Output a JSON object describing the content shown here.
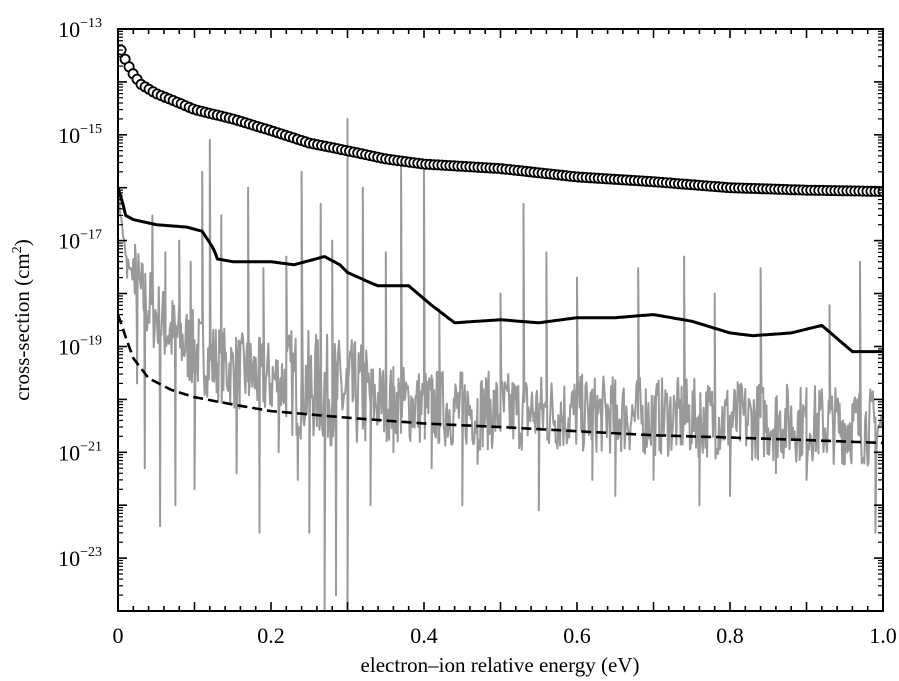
{
  "chart_data": {
    "type": "line",
    "title": "",
    "xlabel": "electron–ion relative energy (eV)",
    "ylabel_main": "cross-section (cm",
    "ylabel_sup": "2",
    "ylabel_tail": ")",
    "xlim": [
      0,
      1.0
    ],
    "ylim_log10": [
      -24.0,
      -13.0
    ],
    "yscale": "log",
    "grid": false,
    "legend": "none",
    "x_ticks": [
      {
        "value": 0,
        "label": "0"
      },
      {
        "value": 0.2,
        "label": "0.2"
      },
      {
        "value": 0.4,
        "label": "0.4"
      },
      {
        "value": 0.6,
        "label": "0.6"
      },
      {
        "value": 0.8,
        "label": "0.8"
      },
      {
        "value": 1.0,
        "label": "1.0"
      }
    ],
    "y_ticks": [
      {
        "exp": -13,
        "base": "10",
        "sup": "−13"
      },
      {
        "exp": -15,
        "base": "10",
        "sup": "−15"
      },
      {
        "exp": -17,
        "base": "10",
        "sup": "−17"
      },
      {
        "exp": -19,
        "base": "10",
        "sup": "−19"
      },
      {
        "exp": -21,
        "base": "10",
        "sup": "−21"
      },
      {
        "exp": -23,
        "base": "10",
        "sup": "−23"
      }
    ],
    "series": [
      {
        "style": "open-circles",
        "color": "#000000",
        "x": [
          0.005,
          0.01,
          0.02,
          0.03,
          0.05,
          0.08,
          0.1,
          0.15,
          0.2,
          0.25,
          0.3,
          0.35,
          0.4,
          0.5,
          0.6,
          0.7,
          0.8,
          0.9,
          1.0
        ],
        "y": [
          4e-14,
          2.5e-14,
          1.4e-14,
          9e-15,
          6e-15,
          4e-15,
          3e-15,
          2e-15,
          1.2e-15,
          7e-16,
          5e-16,
          3.5e-16,
          2.8e-16,
          2.3e-16,
          1.6e-16,
          1.3e-16,
          1e-16,
          9e-17,
          8.5e-17
        ]
      },
      {
        "style": "solid",
        "color": "#000000",
        "x": [
          0.0,
          0.005,
          0.01,
          0.02,
          0.05,
          0.09,
          0.11,
          0.125,
          0.13,
          0.15,
          0.2,
          0.23,
          0.27,
          0.29,
          0.3,
          0.33,
          0.34,
          0.38,
          0.41,
          0.44,
          0.5,
          0.55,
          0.6,
          0.65,
          0.7,
          0.75,
          0.8,
          0.83,
          0.88,
          0.92,
          0.96,
          1.0
        ],
        "y": [
          1e-16,
          6e-17,
          3e-17,
          2.5e-17,
          2e-17,
          1.8e-17,
          1.5e-17,
          7e-18,
          4.5e-18,
          4e-18,
          4e-18,
          3.5e-18,
          5e-18,
          3.5e-18,
          2.5e-18,
          1.6e-18,
          1.4e-18,
          1.4e-18,
          6e-19,
          2.8e-19,
          3.2e-19,
          2.8e-19,
          3.5e-19,
          3.5e-19,
          4e-19,
          3e-19,
          1.8e-19,
          1.6e-19,
          1.8e-19,
          2.5e-19,
          8e-20,
          8e-20
        ]
      },
      {
        "style": "dashed",
        "color": "#000000",
        "x": [
          0.0,
          0.005,
          0.01,
          0.02,
          0.04,
          0.07,
          0.1,
          0.15,
          0.2,
          0.3,
          0.4,
          0.5,
          0.6,
          0.7,
          0.8,
          0.9,
          1.0
        ],
        "y": [
          4e-19,
          2.5e-19,
          1.5e-19,
          6e-20,
          2.5e-20,
          1.5e-20,
          1.1e-20,
          8e-21,
          6e-21,
          4.5e-21,
          3.5e-21,
          3e-21,
          2.5e-21,
          2.1e-21,
          1.9e-21,
          1.7e-21,
          1.5e-21
        ]
      },
      {
        "style": "resonance",
        "color": "#999999",
        "baseline_x": [
          0.0,
          0.01,
          0.03,
          0.06,
          0.1,
          0.15,
          0.2,
          0.3,
          0.4,
          0.5,
          0.6,
          0.7,
          0.8,
          0.9,
          1.0
        ],
        "baseline_y": [
          8e-17,
          5e-18,
          8e-19,
          2e-19,
          7e-20,
          3e-20,
          2e-20,
          1e-20,
          6e-21,
          5e-21,
          4.5e-21,
          4e-21,
          3.5e-21,
          3e-21,
          2.5e-21
        ],
        "noise_amplitude_dex": 1.5,
        "peaks": [
          {
            "x": 0.012,
            "y": 2e-18
          },
          {
            "x": 0.022,
            "y": 1e-18
          },
          {
            "x": 0.045,
            "y": 3e-17
          },
          {
            "x": 0.062,
            "y": 6e-18
          },
          {
            "x": 0.08,
            "y": 1e-17
          },
          {
            "x": 0.095,
            "y": 4e-18
          },
          {
            "x": 0.11,
            "y": 2e-16
          },
          {
            "x": 0.12,
            "y": 8e-16
          },
          {
            "x": 0.135,
            "y": 3e-17
          },
          {
            "x": 0.17,
            "y": 1e-16
          },
          {
            "x": 0.19,
            "y": 3e-18
          },
          {
            "x": 0.22,
            "y": 5e-18
          },
          {
            "x": 0.24,
            "y": 2e-16
          },
          {
            "x": 0.265,
            "y": 5e-17
          },
          {
            "x": 0.28,
            "y": 1e-17
          },
          {
            "x": 0.3,
            "y": 2e-15
          },
          {
            "x": 0.32,
            "y": 1e-16
          },
          {
            "x": 0.35,
            "y": 6e-18
          },
          {
            "x": 0.37,
            "y": 3e-16
          },
          {
            "x": 0.4,
            "y": 3e-16
          },
          {
            "x": 0.42,
            "y": 5e-19
          },
          {
            "x": 0.5,
            "y": 1e-18
          },
          {
            "x": 0.53,
            "y": 5e-17
          },
          {
            "x": 0.56,
            "y": 6e-18
          },
          {
            "x": 0.6,
            "y": 2e-18
          },
          {
            "x": 0.68,
            "y": 3e-18
          },
          {
            "x": 0.74,
            "y": 5e-18
          },
          {
            "x": 0.78,
            "y": 1e-18
          },
          {
            "x": 0.84,
            "y": 3e-18
          },
          {
            "x": 0.93,
            "y": 6e-19
          },
          {
            "x": 0.97,
            "y": 4e-18
          }
        ],
        "dips": [
          {
            "x": 0.025,
            "y": 2e-20
          },
          {
            "x": 0.035,
            "y": 5e-22
          },
          {
            "x": 0.055,
            "y": 4e-23
          },
          {
            "x": 0.075,
            "y": 1e-22
          },
          {
            "x": 0.1,
            "y": 2e-22
          },
          {
            "x": 0.155,
            "y": 4e-22
          },
          {
            "x": 0.185,
            "y": 3e-23
          },
          {
            "x": 0.21,
            "y": 1e-21
          },
          {
            "x": 0.235,
            "y": 3e-22
          },
          {
            "x": 0.25,
            "y": 3e-23
          },
          {
            "x": 0.27,
            "y": 1e-24
          },
          {
            "x": 0.285,
            "y": 2e-24
          },
          {
            "x": 0.3,
            "y": 1e-24
          },
          {
            "x": 0.33,
            "y": 1e-22
          },
          {
            "x": 0.36,
            "y": 1e-21
          },
          {
            "x": 0.41,
            "y": 5e-22
          },
          {
            "x": 0.45,
            "y": 1e-22
          },
          {
            "x": 0.47,
            "y": 6e-22
          },
          {
            "x": 0.55,
            "y": 8e-23
          },
          {
            "x": 0.62,
            "y": 3e-22
          },
          {
            "x": 0.65,
            "y": 1.5e-22
          },
          {
            "x": 0.7,
            "y": 3e-22
          },
          {
            "x": 0.76,
            "y": 1e-22
          },
          {
            "x": 0.8,
            "y": 1.5e-22
          },
          {
            "x": 0.86,
            "y": 4e-22
          },
          {
            "x": 0.9,
            "y": 3e-22
          },
          {
            "x": 0.95,
            "y": 6e-22
          },
          {
            "x": 0.99,
            "y": 3e-23
          }
        ]
      }
    ]
  }
}
